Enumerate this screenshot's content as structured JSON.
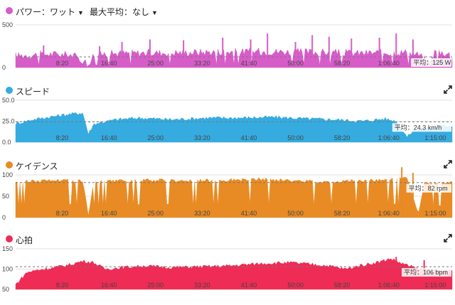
{
  "panels": [
    {
      "title": "パワー：ワット",
      "dropdown": "最大平均：なし",
      "color": "#d65cc8",
      "icon": "expand-icon",
      "chart_data": {
        "type": "area",
        "ylim": [
          0,
          500
        ],
        "yticks": [
          "500",
          "0"
        ],
        "xticks": [
          "8:20",
          "16:40",
          "25:00",
          "33:20",
          "41:40",
          "50:00",
          "58:20",
          "1:06:40",
          "1:15:00"
        ],
        "xlim_min": [
          0,
          78
        ],
        "average_value": 125,
        "average_label": "平均：125 W",
        "profile": [
          [
            0,
            140
          ],
          [
            3,
            150
          ],
          [
            6,
            160
          ],
          [
            10,
            150
          ],
          [
            13,
            50
          ],
          [
            14,
            160
          ],
          [
            20,
            170
          ],
          [
            28,
            175
          ],
          [
            35,
            185
          ],
          [
            42,
            190
          ],
          [
            50,
            185
          ],
          [
            56,
            180
          ],
          [
            60,
            170
          ],
          [
            65,
            175
          ],
          [
            70,
            180
          ],
          [
            72,
            150
          ],
          [
            74,
            60
          ],
          [
            75,
            200
          ],
          [
            78,
            150
          ]
        ],
        "spikes": [
          [
            5,
            260
          ],
          [
            15,
            250
          ],
          [
            19,
            300
          ],
          [
            24,
            330
          ],
          [
            30,
            320
          ],
          [
            37,
            350
          ],
          [
            42,
            330
          ],
          [
            45,
            400
          ],
          [
            50,
            300
          ],
          [
            53,
            380
          ],
          [
            56,
            360
          ],
          [
            60,
            340
          ],
          [
            65,
            350
          ],
          [
            68,
            400
          ],
          [
            71,
            330
          ],
          [
            75,
            200
          ]
        ]
      }
    },
    {
      "title": "スピード",
      "color": "#35abe0",
      "icon": "expand-icon",
      "chart_data": {
        "type": "area",
        "ylim": [
          0,
          50
        ],
        "yticks": [
          "50.0",
          "25.0",
          "0.0"
        ],
        "xticks": [
          "8:20",
          "16:40",
          "25:00",
          "33:20",
          "41:40",
          "50:00",
          "58:20",
          "1:06:40",
          "1:15:00"
        ],
        "xlim_min": [
          0,
          78
        ],
        "average_value": 24.3,
        "average_label": "平均：24.3 km/h",
        "profile": [
          [
            0,
            22
          ],
          [
            3,
            27
          ],
          [
            6,
            30
          ],
          [
            9,
            33
          ],
          [
            12,
            35
          ],
          [
            13,
            10
          ],
          [
            14,
            22
          ],
          [
            18,
            27
          ],
          [
            22,
            29
          ],
          [
            28,
            27
          ],
          [
            34,
            29
          ],
          [
            40,
            29
          ],
          [
            46,
            30
          ],
          [
            52,
            28
          ],
          [
            57,
            27
          ],
          [
            62,
            25
          ],
          [
            66,
            28
          ],
          [
            68,
            25
          ],
          [
            70,
            6
          ],
          [
            71,
            14
          ],
          [
            74,
            18
          ],
          [
            78,
            20
          ]
        ],
        "spikes": []
      }
    },
    {
      "title": "ケイデンス",
      "color": "#e88b24",
      "icon": "expand-icon",
      "chart_data": {
        "type": "area",
        "ylim": [
          0,
          100
        ],
        "yticks": [
          "100",
          "50",
          "0"
        ],
        "xticks": [
          "8:20",
          "16:40",
          "25:00",
          "33:20",
          "41:40",
          "50:00",
          "58:20",
          "1:06:40",
          "1:15:00"
        ],
        "xlim_min": [
          0,
          78
        ],
        "average_value": 82,
        "average_label": "平均：82 rpm",
        "profile": [
          [
            0,
            84
          ],
          [
            4,
            86
          ],
          [
            8,
            88
          ],
          [
            12,
            86
          ],
          [
            13,
            5
          ],
          [
            14,
            84
          ],
          [
            20,
            86
          ],
          [
            26,
            88
          ],
          [
            32,
            86
          ],
          [
            38,
            88
          ],
          [
            44,
            90
          ],
          [
            50,
            86
          ],
          [
            56,
            84
          ],
          [
            60,
            86
          ],
          [
            64,
            88
          ],
          [
            68,
            90
          ],
          [
            70,
            92
          ],
          [
            72,
            10
          ],
          [
            73,
            80
          ],
          [
            78,
            82
          ]
        ],
        "spikes": [
          [
            69,
            118
          ],
          [
            71,
            105
          ]
        ]
      }
    },
    {
      "title": "心拍",
      "color": "#ee2c55",
      "icon": "expand-icon",
      "chart_data": {
        "type": "area",
        "ylim": [
          50,
          150
        ],
        "yticks": [
          "150",
          "100",
          "50"
        ],
        "xticks": [
          "8:20",
          "16:40",
          "25:00",
          "33:20",
          "41:40",
          "50:00",
          "58:20",
          "1:06:40",
          "1:15:00"
        ],
        "xlim_min": [
          0,
          78
        ],
        "average_value": 106,
        "average_label": "平均：106 bpm",
        "profile": [
          [
            0,
            62
          ],
          [
            2,
            92
          ],
          [
            4,
            98
          ],
          [
            7,
            104
          ],
          [
            10,
            112
          ],
          [
            12,
            120
          ],
          [
            14,
            116
          ],
          [
            16,
            100
          ],
          [
            19,
            104
          ],
          [
            23,
            108
          ],
          [
            28,
            104
          ],
          [
            33,
            106
          ],
          [
            38,
            108
          ],
          [
            44,
            114
          ],
          [
            49,
            116
          ],
          [
            53,
            112
          ],
          [
            56,
            108
          ],
          [
            59,
            100
          ],
          [
            62,
            110
          ],
          [
            65,
            118
          ],
          [
            67,
            126
          ],
          [
            69,
            114
          ],
          [
            72,
            100
          ],
          [
            75,
            95
          ],
          [
            78,
            96
          ]
        ],
        "spikes": [
          [
            68,
            130
          ],
          [
            73,
            122
          ]
        ]
      }
    }
  ]
}
